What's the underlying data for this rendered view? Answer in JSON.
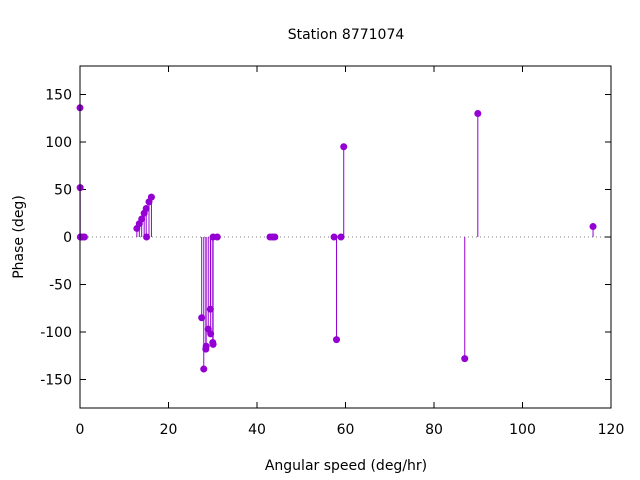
{
  "chart_data": {
    "type": "scatter",
    "style": "impulses with filled point markers",
    "title": "Station 8771074",
    "xlabel": "Angular speed (deg/hr)",
    "ylabel": "Phase (deg)",
    "xlim": [
      0,
      120
    ],
    "ylim": [
      -180,
      180
    ],
    "xticks": [
      0,
      20,
      40,
      60,
      80,
      100,
      120
    ],
    "yticks": [
      -150,
      -100,
      -50,
      0,
      50,
      100,
      150
    ],
    "grid": false,
    "zero_line": "dotted",
    "color": "#9400d3",
    "series": [
      {
        "points": [
          [
            0.0,
            136
          ],
          [
            0.04,
            52
          ],
          [
            0.08,
            0
          ],
          [
            0.5,
            0
          ],
          [
            1.0,
            0
          ],
          [
            12.85,
            9
          ],
          [
            13.4,
            14
          ],
          [
            13.94,
            19
          ],
          [
            14.5,
            25
          ],
          [
            14.96,
            30
          ],
          [
            15.04,
            0
          ],
          [
            15.59,
            37
          ],
          [
            16.14,
            42
          ],
          [
            27.5,
            -85
          ],
          [
            27.97,
            -139
          ],
          [
            28.44,
            -118
          ],
          [
            28.51,
            -115
          ],
          [
            28.98,
            -97
          ],
          [
            29.46,
            -76
          ],
          [
            29.53,
            -102
          ],
          [
            30.0,
            -111
          ],
          [
            30.08,
            -113
          ],
          [
            30.08,
            0
          ],
          [
            31.02,
            0
          ],
          [
            42.93,
            0
          ],
          [
            43.48,
            0
          ],
          [
            44.03,
            0
          ],
          [
            57.42,
            0
          ],
          [
            57.97,
            -108
          ],
          [
            58.98,
            0
          ],
          [
            59.6,
            95
          ],
          [
            86.95,
            -128
          ],
          [
            89.9,
            130
          ],
          [
            115.94,
            11
          ]
        ]
      }
    ]
  }
}
